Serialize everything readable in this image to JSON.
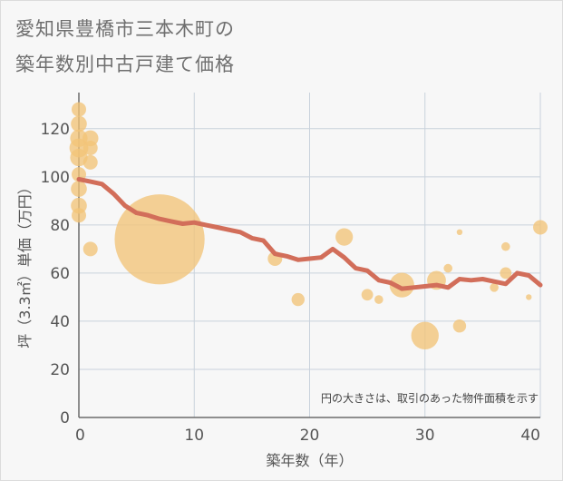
{
  "title_line1": "愛知県豊橋市三本木町の",
  "title_line2": "築年数別中古戸建て価格",
  "chart_data": {
    "type": "scatter",
    "xlabel": "築年数（年）",
    "ylabel": "坪（3.3㎡）単価（万円）",
    "note": "円の大きさは、取引のあった物件面積を示す",
    "xlim": [
      0,
      40
    ],
    "ylim": [
      0,
      135
    ],
    "xticks": [
      0,
      10,
      20,
      30,
      40
    ],
    "yticks": [
      0,
      20,
      40,
      60,
      80,
      100,
      120
    ],
    "grid": true,
    "colors": {
      "bubble": "#f2c478",
      "line": "#d26e5a",
      "grid": "#c9d2dc"
    },
    "points": [
      {
        "x": 0,
        "y": 128,
        "s": 1.0
      },
      {
        "x": 0,
        "y": 122,
        "s": 1.1
      },
      {
        "x": 0,
        "y": 116,
        "s": 1.2
      },
      {
        "x": 0,
        "y": 112,
        "s": 1.3
      },
      {
        "x": 0,
        "y": 108,
        "s": 1.2
      },
      {
        "x": 0,
        "y": 101,
        "s": 1.0
      },
      {
        "x": 0,
        "y": 95,
        "s": 1.1
      },
      {
        "x": 0,
        "y": 88,
        "s": 1.1
      },
      {
        "x": 0,
        "y": 84,
        "s": 1.0
      },
      {
        "x": 1,
        "y": 116,
        "s": 1.1
      },
      {
        "x": 1,
        "y": 112,
        "s": 1.0
      },
      {
        "x": 1,
        "y": 106,
        "s": 1.0
      },
      {
        "x": 1,
        "y": 70,
        "s": 1.0
      },
      {
        "x": 7,
        "y": 74,
        "s": 6.2
      },
      {
        "x": 17,
        "y": 66,
        "s": 1.0
      },
      {
        "x": 19,
        "y": 49,
        "s": 0.9
      },
      {
        "x": 23,
        "y": 75,
        "s": 1.2
      },
      {
        "x": 25,
        "y": 51,
        "s": 0.8
      },
      {
        "x": 26,
        "y": 49,
        "s": 0.6
      },
      {
        "x": 28,
        "y": 55,
        "s": 1.7
      },
      {
        "x": 30,
        "y": 34,
        "s": 1.9
      },
      {
        "x": 31,
        "y": 57,
        "s": 1.3
      },
      {
        "x": 32,
        "y": 62,
        "s": 0.6
      },
      {
        "x": 33,
        "y": 77,
        "s": 0.4
      },
      {
        "x": 33,
        "y": 38,
        "s": 0.9
      },
      {
        "x": 36,
        "y": 54,
        "s": 0.6
      },
      {
        "x": 37,
        "y": 71,
        "s": 0.6
      },
      {
        "x": 37,
        "y": 60,
        "s": 0.8
      },
      {
        "x": 39,
        "y": 50,
        "s": 0.4
      },
      {
        "x": 40,
        "y": 79,
        "s": 1.0
      }
    ],
    "trend": {
      "x": [
        0,
        1,
        2,
        3,
        4,
        5,
        6,
        7,
        8,
        9,
        10,
        11,
        12,
        13,
        14,
        15,
        16,
        17,
        18,
        19,
        20,
        21,
        22,
        23,
        24,
        25,
        26,
        27,
        28,
        29,
        30,
        31,
        32,
        33,
        34,
        35,
        36,
        37,
        38,
        39,
        40
      ],
      "y": [
        99,
        98,
        97,
        93,
        88,
        85,
        84,
        82.5,
        81.5,
        80.5,
        81,
        80,
        79,
        78,
        77,
        74.5,
        73.5,
        68,
        67,
        65.5,
        66,
        66.5,
        70,
        66.5,
        62,
        61,
        57,
        56,
        53.5,
        54,
        54.5,
        55,
        54,
        57.5,
        57,
        57.5,
        56.5,
        55.5,
        60,
        59,
        55
      ]
    }
  }
}
